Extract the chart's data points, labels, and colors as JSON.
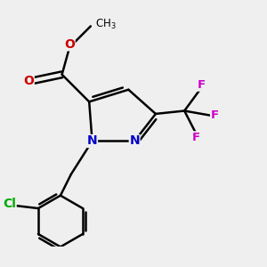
{
  "background_color": "#efefef",
  "atom_colors": {
    "N": "#0000cc",
    "O": "#cc0000",
    "F": "#cc00cc",
    "Cl": "#00aa00",
    "C": "#000000"
  },
  "bond_lw": 1.8,
  "dbo": 0.018
}
